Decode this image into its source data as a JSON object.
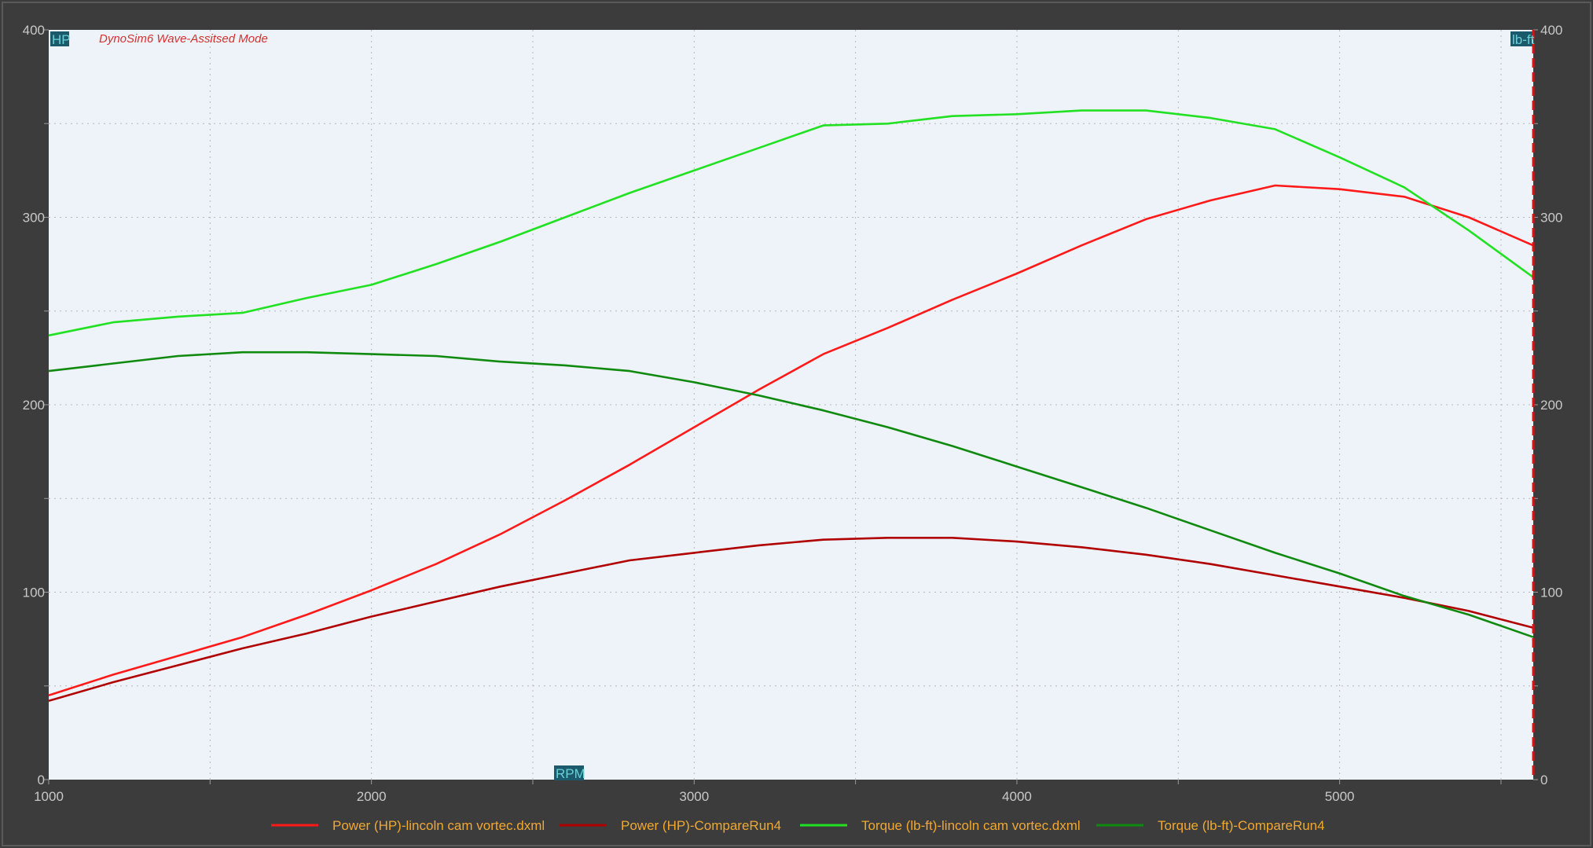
{
  "colors": {
    "frame": "#3c3c3c",
    "plot_bg": "#eef3f9",
    "grid": "#b8b8b8",
    "tick_text": "#c8c8c8",
    "axis_tag_bg": "#1a5a6a",
    "axis_tag_text": "#6ad0d8",
    "title": "#d43030",
    "legend_text": "#f0a830",
    "cursor": "#e01010"
  },
  "chart_data": {
    "type": "line",
    "title": "DynoSim6 Wave-Assitsed Mode",
    "xlabel": "RPM",
    "ylabel_left": "HP",
    "ylabel_right": "lb-ft",
    "xlim": [
      1000,
      5600
    ],
    "ylim": [
      0,
      400
    ],
    "ylim_right": [
      0,
      400
    ],
    "x_ticks": [
      1000,
      2000,
      3000,
      4000,
      5000
    ],
    "y_ticks": [
      0,
      100,
      200,
      300,
      400
    ],
    "grid": true,
    "legend_position": "bottom",
    "series": [
      {
        "name": "Power (HP)-lincoln cam vortec.dxml",
        "color": "#ff1a1a",
        "x": [
          1000,
          1200,
          1400,
          1600,
          1800,
          2000,
          2200,
          2400,
          2600,
          2800,
          3000,
          3200,
          3400,
          3600,
          3800,
          4000,
          4200,
          4400,
          4600,
          4800,
          5000,
          5200,
          5400,
          5600
        ],
        "y": [
          45,
          56,
          66,
          76,
          88,
          101,
          115,
          131,
          149,
          168,
          188,
          208,
          227,
          241,
          256,
          270,
          285,
          299,
          309,
          317,
          315,
          311,
          300,
          285
        ]
      },
      {
        "name": "Power (HP)-CompareRun4",
        "color": "#b00000",
        "x": [
          1000,
          1200,
          1400,
          1600,
          1800,
          2000,
          2200,
          2400,
          2600,
          2800,
          3000,
          3200,
          3400,
          3600,
          3800,
          4000,
          4200,
          4400,
          4600,
          4800,
          5000,
          5200,
          5400,
          5600
        ],
        "y": [
          42,
          52,
          61,
          70,
          78,
          87,
          95,
          103,
          110,
          117,
          121,
          125,
          128,
          129,
          129,
          127,
          124,
          120,
          115,
          109,
          103,
          97,
          90,
          81
        ]
      },
      {
        "name": "Torque (lb-ft)-lincoln cam vortec.dxml",
        "color": "#22e022",
        "x": [
          1000,
          1200,
          1400,
          1600,
          1800,
          2000,
          2200,
          2400,
          2600,
          2800,
          3000,
          3200,
          3400,
          3600,
          3800,
          4000,
          4200,
          4400,
          4600,
          4800,
          5000,
          5200,
          5400,
          5600
        ],
        "y": [
          237,
          244,
          247,
          249,
          257,
          264,
          275,
          287,
          300,
          313,
          325,
          337,
          349,
          350,
          354,
          355,
          357,
          357,
          353,
          347,
          332,
          316,
          293,
          268
        ]
      },
      {
        "name": "Torque (lb-ft)-CompareRun4",
        "color": "#0f8a0f",
        "x": [
          1000,
          1200,
          1400,
          1600,
          1800,
          2000,
          2200,
          2400,
          2600,
          2800,
          3000,
          3200,
          3400,
          3600,
          3800,
          4000,
          4200,
          4400,
          4600,
          4800,
          5000,
          5200,
          5400,
          5600
        ],
        "y": [
          218,
          222,
          226,
          228,
          228,
          227,
          226,
          223,
          221,
          218,
          212,
          205,
          197,
          188,
          178,
          167,
          156,
          145,
          133,
          121,
          110,
          98,
          88,
          76
        ]
      }
    ]
  }
}
